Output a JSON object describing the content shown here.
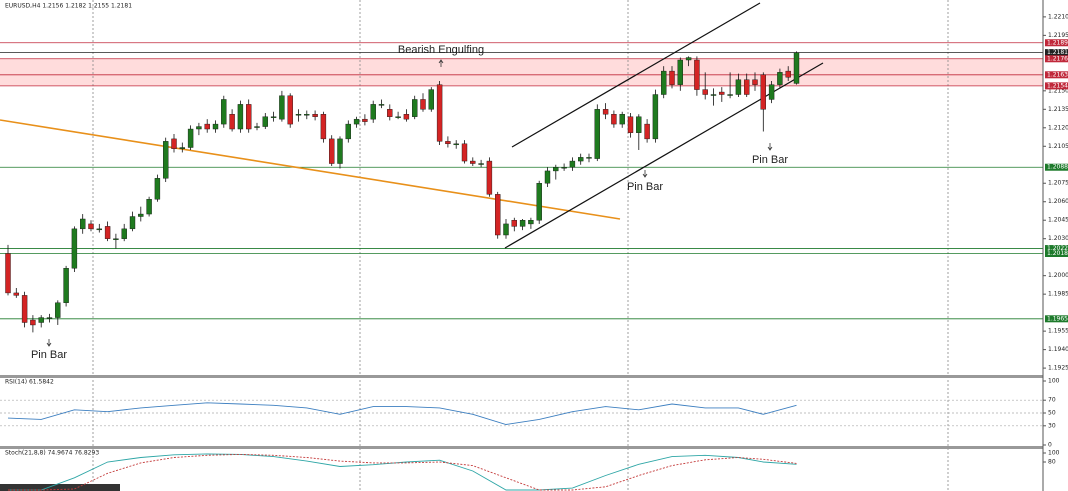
{
  "chart_data": {
    "type": "candlestick",
    "title": "EURUSD,H4  1.2156 1.2182 1.2155 1.2181",
    "up_color": "#1f7a1f",
    "down_color": "#d42424",
    "ylim": [
      1.19194,
      1.22237
    ],
    "yticks": [
      {
        "value": 1.221,
        "label": "1.2210"
      },
      1.2195,
      {
        "value": 1.215,
        "label": "1.2150"
      },
      1.2135,
      {
        "value": 1.212,
        "label": "1.2120"
      },
      1.2105,
      1.2075,
      {
        "value": 1.206,
        "label": "1.2060"
      },
      1.2045,
      {
        "value": 1.203,
        "label": "1.2030"
      },
      {
        "value": 1.2,
        "label": "1.2000"
      },
      1.1985,
      1.1955,
      {
        "value": 1.194,
        "label": "1.1940"
      },
      1.1925
    ],
    "open": [
      1.2018,
      1.1986,
      1.1984,
      1.1964,
      1.1962,
      1.1966,
      1.1966,
      1.1978,
      1.2006,
      1.2038,
      1.2042,
      1.2038,
      1.204,
      1.203,
      1.203,
      1.2038,
      1.2048,
      1.205,
      1.2062,
      1.2079,
      1.2111,
      1.2103,
      1.2104,
      1.2119,
      1.2123,
      1.2119,
      1.2123,
      1.2131,
      1.2119,
      1.2139,
      1.2121,
      1.2121,
      1.2129,
      1.2127,
      1.2146,
      1.2131,
      1.2131,
      1.2131,
      1.2131,
      1.2111,
      1.2091,
      1.2111,
      1.2123,
      1.2127,
      1.2127,
      1.2139,
      1.2135,
      1.2129,
      1.2131,
      1.2129,
      1.2143,
      1.2135,
      1.2155,
      1.2109,
      1.2107,
      1.2107,
      1.2093,
      1.2091,
      1.2093,
      1.2066,
      1.2033,
      1.2045,
      1.204,
      1.2042,
      1.2045,
      1.2075,
      1.2085,
      1.2088,
      1.2088,
      1.2093,
      1.2096,
      1.2095,
      1.2135,
      1.2131,
      1.2123,
      1.2129,
      1.2116,
      1.2123,
      1.2111,
      1.2147,
      1.2166,
      1.2155,
      1.2175,
      1.2175,
      1.2151,
      1.2147,
      1.2149,
      1.2147,
      1.2147,
      1.2159,
      1.2159,
      1.2163,
      1.2143,
      1.2155,
      1.2166,
      1.2156
    ],
    "high": [
      1.2025,
      1.199,
      1.1987,
      1.1968,
      1.1968,
      1.1969,
      1.198,
      1.2008,
      1.204,
      1.205,
      1.2045,
      1.2042,
      1.2044,
      1.2034,
      1.2042,
      1.2052,
      1.2056,
      1.2064,
      1.2082,
      1.2112,
      1.2115,
      1.2108,
      1.2122,
      1.2124,
      1.2127,
      1.2126,
      1.2146,
      1.2135,
      1.2142,
      1.2143,
      1.2124,
      1.2132,
      1.2133,
      1.215,
      1.2148,
      1.2135,
      1.2134,
      1.2134,
      1.2133,
      1.2114,
      1.2113,
      1.2126,
      1.2129,
      1.2131,
      1.2142,
      1.2143,
      1.2139,
      1.2133,
      1.2135,
      1.2146,
      1.2148,
      1.2153,
      1.2158,
      1.2113,
      1.211,
      1.211,
      1.2096,
      1.2094,
      1.2096,
      1.2068,
      1.2046,
      1.2047,
      1.2046,
      1.2047,
      1.2077,
      1.2088,
      1.209,
      1.2091,
      1.2096,
      1.2099,
      1.2099,
      1.2139,
      1.214,
      1.2134,
      1.2133,
      1.2132,
      1.2131,
      1.2127,
      1.2151,
      1.217,
      1.217,
      1.2177,
      1.2178,
      1.2178,
      1.2165,
      1.2152,
      1.2153,
      1.2165,
      1.2164,
      1.2164,
      1.2165,
      1.2165,
      1.2158,
      1.2168,
      1.217,
      1.2182
    ],
    "low": [
      1.1984,
      1.1982,
      1.1958,
      1.1954,
      1.1958,
      1.1962,
      1.196,
      1.1975,
      1.2003,
      1.2034,
      1.2036,
      1.2035,
      1.2028,
      1.2022,
      1.2028,
      1.2036,
      1.2044,
      1.2048,
      1.206,
      1.2076,
      1.21,
      1.21,
      1.2102,
      1.2114,
      1.2116,
      1.2116,
      1.212,
      1.2117,
      1.2116,
      1.2116,
      1.2118,
      1.2119,
      1.2125,
      1.2125,
      1.212,
      1.2125,
      1.2127,
      1.2126,
      1.2108,
      1.2089,
      1.2087,
      1.2108,
      1.212,
      1.2122,
      1.2124,
      1.2136,
      1.2126,
      1.2127,
      1.2125,
      1.2127,
      1.2133,
      1.2133,
      1.2106,
      1.2104,
      1.2103,
      1.2091,
      1.2089,
      1.2088,
      1.2064,
      1.203,
      1.203,
      1.2036,
      1.2037,
      1.2038,
      1.2042,
      1.2072,
      1.2078,
      1.2085,
      1.2085,
      1.209,
      1.2092,
      1.2093,
      1.2127,
      1.212,
      1.212,
      1.2112,
      1.2102,
      1.2108,
      1.2108,
      1.2144,
      1.2152,
      1.215,
      1.217,
      1.2146,
      1.2143,
      1.2138,
      1.2141,
      1.2144,
      1.2145,
      1.2145,
      1.215,
      1.2117,
      1.214,
      1.2152,
      1.2158,
      1.2155
    ],
    "close": [
      1.1986,
      1.1984,
      1.1962,
      1.196,
      1.1966,
      1.1966,
      1.1978,
      1.2006,
      1.2038,
      1.2046,
      1.2038,
      1.2038,
      1.203,
      1.203,
      1.2038,
      1.2048,
      1.205,
      1.2062,
      1.2079,
      1.2109,
      1.2103,
      1.2104,
      1.2119,
      1.2121,
      1.2119,
      1.2123,
      1.2143,
      1.2119,
      1.2139,
      1.2119,
      1.2121,
      1.2129,
      1.2129,
      1.2146,
      1.2123,
      1.2131,
      1.2131,
      1.2129,
      1.2111,
      1.2091,
      1.2111,
      1.2123,
      1.2127,
      1.2125,
      1.2139,
      1.2139,
      1.2129,
      1.2129,
      1.2127,
      1.2143,
      1.2135,
      1.2151,
      1.2109,
      1.2107,
      1.2107,
      1.2093,
      1.2091,
      1.2091,
      1.2066,
      1.2033,
      1.2042,
      1.204,
      1.2045,
      1.2045,
      1.2075,
      1.2085,
      1.2088,
      1.2088,
      1.2093,
      1.2096,
      1.2096,
      1.2135,
      1.2131,
      1.2123,
      1.2131,
      1.2116,
      1.2129,
      1.2111,
      1.2147,
      1.2166,
      1.2155,
      1.2175,
      1.2177,
      1.2151,
      1.2147,
      1.2147,
      1.2147,
      1.2147,
      1.2159,
      1.2147,
      1.2155,
      1.2135,
      1.2155,
      1.2165,
      1.2161,
      1.2181
    ],
    "levels": [
      {
        "value": 1.2189,
        "color": "#c0283a"
      },
      {
        "value": 1.2181,
        "color": "#222222"
      },
      {
        "value": 1.2176,
        "color": "#c0283a"
      },
      {
        "value": 1.2163,
        "color": "#c0283a"
      },
      {
        "value": 1.2154,
        "color": "#c0283a"
      },
      {
        "value": 1.2088,
        "color": "#1d7a2b"
      },
      {
        "value": 1.2022,
        "color": "#1d7a2b"
      },
      {
        "value": 1.2018,
        "color": "#1d7a2b"
      },
      {
        "value": 1.1965,
        "color": "#1d7a2b"
      }
    ],
    "zone": {
      "from": 1.2154,
      "to": 1.2176,
      "color": "#ffdcdc"
    },
    "annotations": [
      "Bearish Engulfing",
      "Pin Bar",
      "Pin Bar",
      "Pin Bar"
    ],
    "rsi": {
      "title": "RSI(14) 61.5842",
      "color": "#3d7fc0",
      "ylim": [
        0,
        100
      ],
      "yticks": [
        100,
        70,
        50,
        30,
        0
      ],
      "levels": [
        70,
        50,
        30
      ],
      "x": [
        0,
        4,
        8,
        12,
        16,
        20,
        24,
        28,
        32,
        36,
        40,
        44,
        48,
        52,
        56,
        60,
        64,
        68,
        72,
        76,
        80,
        84,
        88,
        91,
        95
      ],
      "values": [
        42,
        40,
        55,
        52,
        58,
        62,
        66,
        64,
        62,
        58,
        48,
        60,
        60,
        58,
        48,
        32,
        40,
        52,
        60,
        55,
        64,
        58,
        58,
        48,
        62
      ]
    },
    "stoch": {
      "title": "Stoch(21,8,8) 74.9674 76.8293",
      "ylim": [
        0,
        100
      ],
      "yticks": [
        100,
        80
      ],
      "x": [
        0,
        4,
        8,
        12,
        16,
        20,
        24,
        28,
        32,
        36,
        40,
        44,
        48,
        52,
        56,
        60,
        64,
        68,
        72,
        76,
        80,
        84,
        88,
        91,
        95
      ],
      "main": {
        "color": "#2ea6a6",
        "values": [
          2,
          10,
          45,
          80,
          90,
          96,
          98,
          97,
          92,
          82,
          70,
          74,
          80,
          84,
          60,
          10,
          2,
          22,
          50,
          75,
          92,
          95,
          90,
          80,
          75
        ]
      },
      "signal": {
        "color": "#c43c3c",
        "values": [
          0,
          2,
          20,
          55,
          78,
          90,
          95,
          97,
          95,
          90,
          82,
          78,
          78,
          80,
          72,
          45,
          15,
          10,
          25,
          50,
          72,
          85,
          90,
          86,
          77
        ]
      }
    }
  }
}
